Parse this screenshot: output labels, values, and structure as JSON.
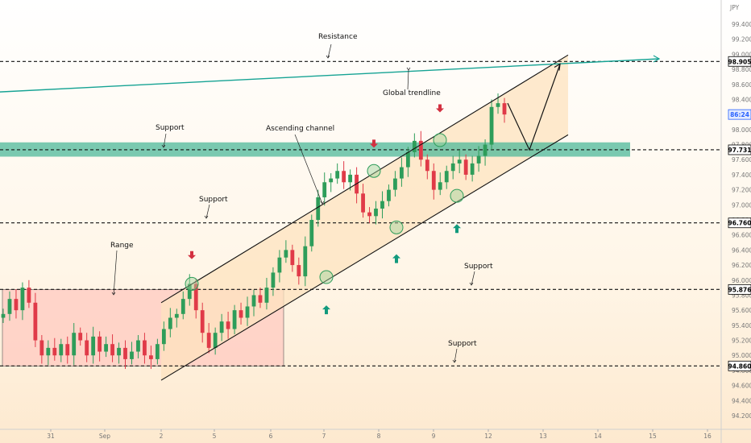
{
  "chart_data": {
    "type": "candlestick",
    "currency_label": "JPY",
    "y_ticks": [
      "99.400",
      "99.200",
      "99.000",
      "98.800",
      "98.600",
      "98.400",
      "98.200",
      "98.000",
      "97.800",
      "97.600",
      "97.400",
      "97.200",
      "97.000",
      "96.800",
      "96.600",
      "96.400",
      "96.200",
      "96.000",
      "95.800",
      "95.600",
      "95.400",
      "95.200",
      "95.000",
      "94.800",
      "94.600",
      "94.400",
      "94.200"
    ],
    "y_range": [
      94.0,
      99.6
    ],
    "x_ticks": [
      "31",
      "Sep",
      "2",
      "5",
      "6",
      "7",
      "8",
      "9",
      "12",
      "13",
      "14",
      "15",
      "16"
    ],
    "price_badges": [
      {
        "text": "98.905",
        "value": 98.905,
        "color": "#000000"
      },
      {
        "text": "86:24",
        "value": 98.2,
        "color": "#2962ff"
      },
      {
        "text": "97.731",
        "value": 97.731,
        "color": "#000000"
      },
      {
        "text": "96.760",
        "value": 96.76,
        "color": "#000000"
      },
      {
        "text": "95.876",
        "value": 95.876,
        "color": "#000000"
      },
      {
        "text": "94.860",
        "value": 94.86,
        "color": "#000000"
      }
    ],
    "levels": [
      {
        "value": 98.905,
        "label": "Resistance"
      },
      {
        "value": 97.731,
        "label": "Support"
      },
      {
        "value": 96.76,
        "label": "Support"
      },
      {
        "value": 95.876,
        "label": "Support"
      },
      {
        "value": 94.86,
        "label": "Support"
      }
    ],
    "support_zone": [
      97.64,
      97.83
    ],
    "range_box": {
      "top": 95.876,
      "bottom": 94.86,
      "label": "Range"
    },
    "channel": {
      "label": "Ascending channel",
      "upper": [
        [
          0,
          95.7
        ],
        [
          100,
          98.99
        ]
      ],
      "lower": [
        [
          0,
          94.67
        ],
        [
          100,
          97.93
        ]
      ]
    },
    "global_trendline": {
      "label": "Global trendline",
      "from": 98.5,
      "to": 98.94
    },
    "projection": [
      98.35,
      97.73,
      98.87
    ],
    "annotations": [
      "Resistance",
      "Global trendline",
      "Support",
      "Ascending channel",
      "Support",
      "Range",
      "Support",
      "Support"
    ],
    "series": [
      {
        "name": "",
        "close": [
          95.55,
          95.75,
          95.6,
          95.9,
          95.7,
          95.2,
          95.0,
          95.1,
          95.0,
          95.15,
          95.0,
          95.3,
          95.2,
          95.0,
          95.25,
          95.05,
          95.15,
          95.0,
          95.1,
          94.95,
          95.05,
          95.2,
          95.0,
          94.95,
          95.15,
          95.35,
          95.5,
          95.55,
          95.75,
          95.95,
          95.6,
          95.3,
          95.1,
          95.3,
          95.45,
          95.35,
          95.6,
          95.5,
          95.65,
          95.8,
          95.7,
          95.9,
          96.1,
          96.3,
          96.4,
          96.2,
          96.05,
          96.45,
          96.8,
          97.1,
          97.3,
          97.35,
          97.45,
          97.3,
          97.4,
          97.15,
          96.9,
          96.85,
          96.95,
          97.05,
          97.2,
          97.35,
          97.5,
          97.7,
          97.85,
          97.6,
          97.45,
          97.2,
          97.3,
          97.45,
          97.55,
          97.6,
          97.4,
          97.55,
          97.65,
          97.8,
          98.3,
          98.35,
          98.2
        ]
      }
    ]
  }
}
